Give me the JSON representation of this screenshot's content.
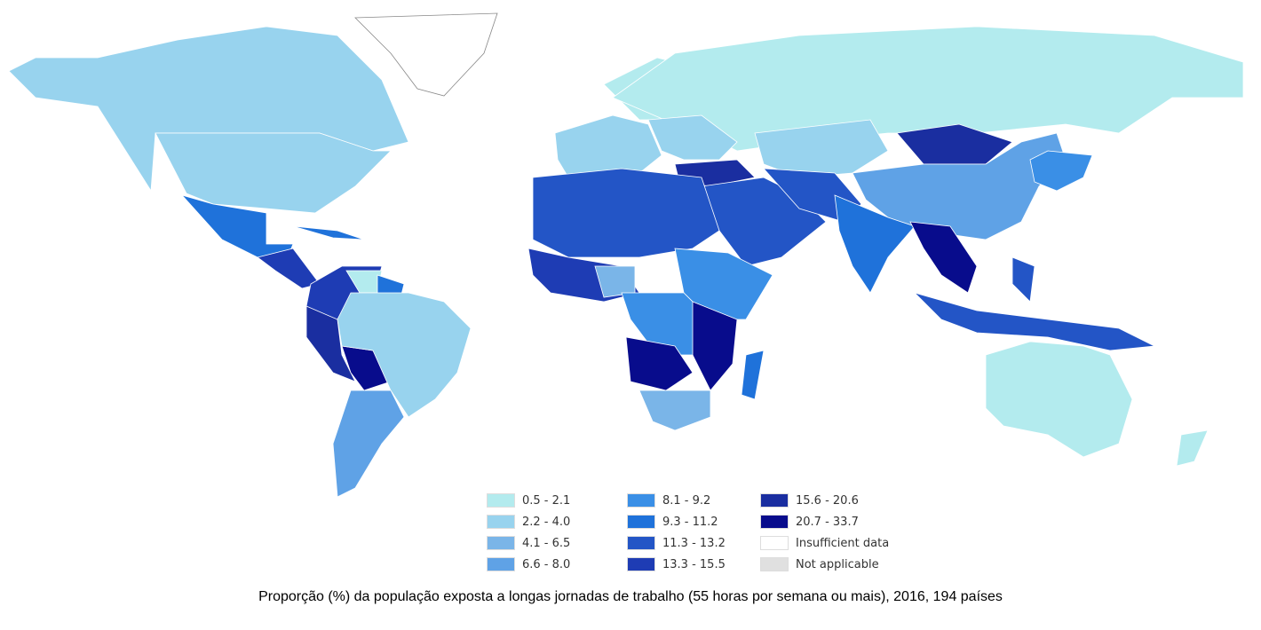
{
  "title": "Proporção (%) da população exposta a longas jornadas de trabalho (55 horas por semana ou mais), 2016, 194 países",
  "legend": [
    {
      "label": "0.5 - 2.1",
      "color": "#b3ebee"
    },
    {
      "label": "2.2 - 4.0",
      "color": "#98d3ee"
    },
    {
      "label": "4.1 - 6.5",
      "color": "#7ab5e8"
    },
    {
      "label": "6.6 - 8.0",
      "color": "#5fa2e6"
    },
    {
      "label": "8.1 - 9.2",
      "color": "#3a8fe6"
    },
    {
      "label": "9.3 - 11.2",
      "color": "#1f72da"
    },
    {
      "label": "11.3 - 13.2",
      "color": "#2355c6"
    },
    {
      "label": "13.3 - 15.5",
      "color": "#1e3cb4"
    },
    {
      "label": "15.6 - 20.6",
      "color": "#1a2ea0"
    },
    {
      "label": "20.7 - 33.7",
      "color": "#080c8c"
    },
    {
      "label": "Insufficient data",
      "color": "#ffffff"
    },
    {
      "label": "Not applicable",
      "color": "#e0e0e0"
    }
  ]
}
